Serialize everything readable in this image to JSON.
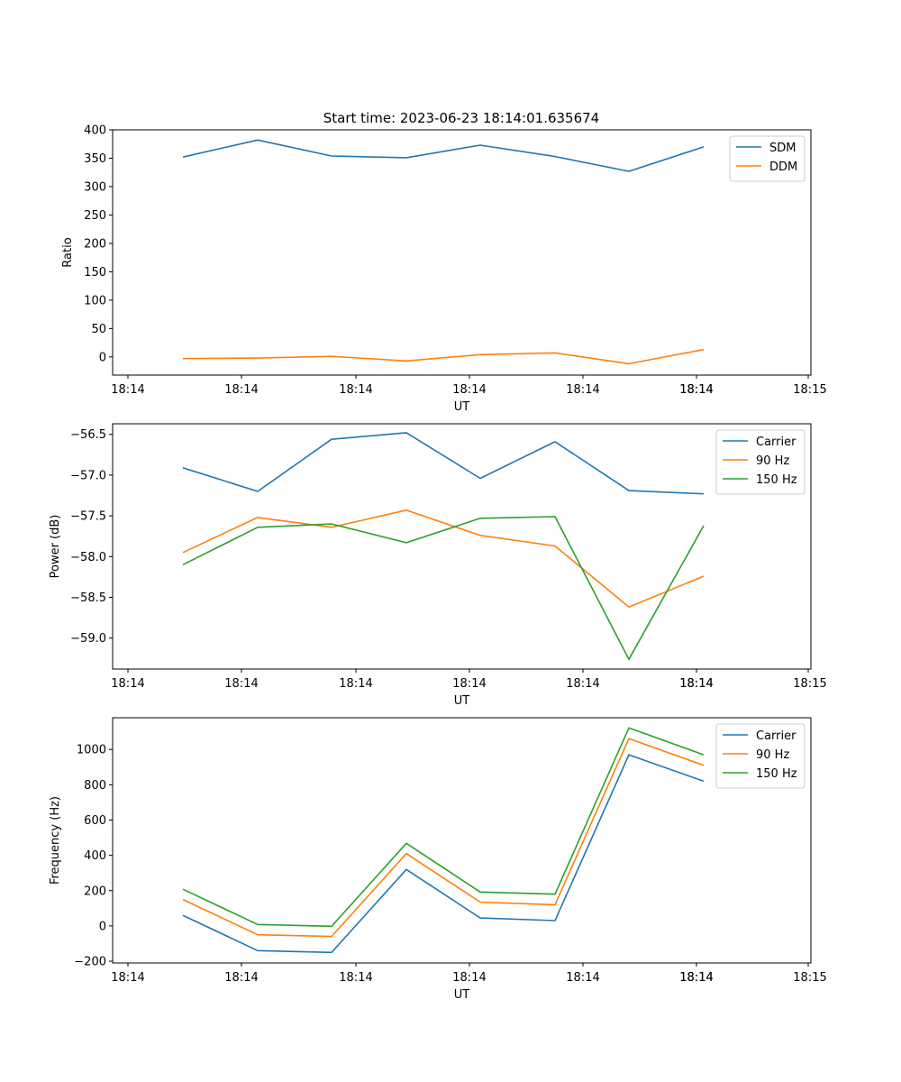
{
  "figure_title": "Start time: 2023-06-23 18:14:01.635674",
  "chart_data": [
    {
      "type": "line",
      "title": "Start time: 2023-06-23 18:14:01.635674",
      "xlabel": "UT",
      "ylabel": "Ratio",
      "x_tick_labels": [
        "18:14",
        "18:14",
        "18:14",
        "18:14",
        "18:14",
        "18:14",
        "18:14",
        "18:15"
      ],
      "x": [
        "18:14:01.9",
        "18:14:02.2",
        "18:14:02.5",
        "18:14:02.8",
        "18:14:03.1",
        "18:14:03.4",
        "18:14:03.7",
        "18:14:04.0"
      ],
      "ylim": [
        -32,
        400
      ],
      "y_ticks": [
        0,
        50,
        100,
        150,
        200,
        250,
        300,
        350,
        400
      ],
      "legend": "top-right",
      "series": [
        {
          "name": "SDM",
          "color": "#1f77b4",
          "values": [
            352,
            382,
            354,
            351,
            373,
            353,
            327,
            370
          ]
        },
        {
          "name": "DDM",
          "color": "#ff7f0e",
          "values": [
            -3,
            -2,
            1,
            -7,
            4,
            7,
            -12,
            13
          ]
        }
      ]
    },
    {
      "type": "line",
      "xlabel": "UT",
      "ylabel": "Power (dB)",
      "x_tick_labels": [
        "18:14",
        "18:14",
        "18:14",
        "18:14",
        "18:14",
        "18:14",
        "18:14",
        "18:15"
      ],
      "x": [
        "18:14:01.9",
        "18:14:02.2",
        "18:14:02.5",
        "18:14:02.8",
        "18:14:03.1",
        "18:14:03.4",
        "18:14:03.7",
        "18:14:04.0"
      ],
      "ylim": [
        -59.38,
        -56.37
      ],
      "y_ticks": [
        -59.0,
        -58.5,
        -58.0,
        -57.5,
        -57.0,
        -56.5
      ],
      "y_tick_labels": [
        "−59.0",
        "−58.5",
        "−58.0",
        "−57.5",
        "−57.0",
        "−56.5"
      ],
      "legend": "top-right",
      "series": [
        {
          "name": "Carrier",
          "color": "#1f77b4",
          "values": [
            -56.91,
            -57.2,
            -56.56,
            -56.48,
            -57.04,
            -56.59,
            -57.19,
            -57.23
          ]
        },
        {
          "name": "90 Hz",
          "color": "#ff7f0e",
          "values": [
            -57.95,
            -57.52,
            -57.64,
            -57.43,
            -57.74,
            -57.87,
            -58.62,
            -58.24
          ]
        },
        {
          "name": "150 Hz",
          "color": "#2ca02c",
          "values": [
            -58.1,
            -57.64,
            -57.6,
            -57.83,
            -57.53,
            -57.51,
            -59.26,
            -57.62
          ]
        }
      ]
    },
    {
      "type": "line",
      "xlabel": "UT",
      "ylabel": "Frequency (Hz)",
      "x_tick_labels": [
        "18:14",
        "18:14",
        "18:14",
        "18:14",
        "18:14",
        "18:14",
        "18:14",
        "18:15"
      ],
      "x": [
        "18:14:01.9",
        "18:14:02.2",
        "18:14:02.5",
        "18:14:02.8",
        "18:14:03.1",
        "18:14:03.4",
        "18:14:03.7",
        "18:14:04.0"
      ],
      "ylim": [
        -210,
        1180
      ],
      "y_ticks": [
        -200,
        0,
        200,
        400,
        600,
        800,
        1000
      ],
      "y_tick_labels": [
        "−200",
        "0",
        "200",
        "400",
        "600",
        "800",
        "1000"
      ],
      "legend": "top-right",
      "series": [
        {
          "name": "Carrier",
          "color": "#1f77b4",
          "values": [
            60,
            -140,
            -150,
            320,
            45,
            30,
            970,
            820
          ]
        },
        {
          "name": "90 Hz",
          "color": "#ff7f0e",
          "values": [
            150,
            -50,
            -60,
            410,
            135,
            120,
            1062,
            910
          ]
        },
        {
          "name": "150 Hz",
          "color": "#2ca02c",
          "values": [
            208,
            8,
            -2,
            468,
            192,
            180,
            1122,
            970
          ]
        }
      ]
    }
  ]
}
